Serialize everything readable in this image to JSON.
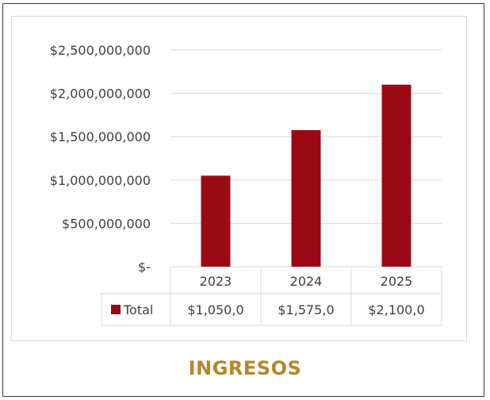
{
  "colors": {
    "bar": "#9b0a14",
    "title": "#b5862a",
    "axis_text": "#404040",
    "grid": "#d9d9d9"
  },
  "title": "INGRESOS",
  "chart_data": {
    "type": "bar",
    "categories": [
      "2023",
      "2024",
      "2025"
    ],
    "series": [
      {
        "name": "Total",
        "values": [
          1050000000,
          1575000000,
          2100000000
        ]
      }
    ],
    "table_values": [
      "$1,050,0",
      "$1,575,0",
      "$2,100,0"
    ],
    "y_ticks": [
      {
        "value": 0,
        "label": "$-"
      },
      {
        "value": 500000000,
        "label": "$500,000,000"
      },
      {
        "value": 1000000000,
        "label": "$1,000,000,000"
      },
      {
        "value": 1500000000,
        "label": "$1,500,000,000"
      },
      {
        "value": 2000000000,
        "label": "$2,000,000,000"
      },
      {
        "value": 2500000000,
        "label": "$2,500,000,000"
      }
    ],
    "ylim": [
      0,
      2500000000
    ],
    "grid": true,
    "legend": "data-table"
  }
}
